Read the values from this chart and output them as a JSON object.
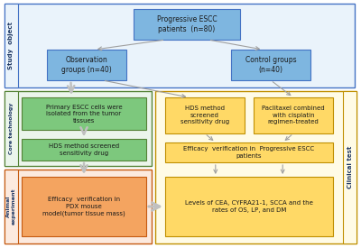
{
  "fig_width": 4.0,
  "fig_height": 2.75,
  "dpi": 100,
  "bg_color": "#ffffff",
  "box_blue": "#7EB6E0",
  "box_green": "#7DC87D",
  "box_yellow": "#FFD966",
  "box_salmon": "#F4A460",
  "border_blue": "#4472C4",
  "border_green": "#548235",
  "border_yellow": "#BF8F00",
  "border_salmon": "#C55A11",
  "arrow_color": "#A0A0A0",
  "study_object_label": "Study  object",
  "core_tech_label": "Core technology",
  "animal_label": "Animal\nexperiment",
  "clinical_label": "Clinical test",
  "box1_text": "Progressive ESCC\npatients  (n=80)",
  "box2_text": "Observation\ngroups (n=40)",
  "box3_text": "Control groups\n(n=40)",
  "box4_text": "Primary ESCC cells were\nisolated from the tumor\ntissues",
  "box5_text": "HDS method screened\nsensitivity drug",
  "box6_text": "HDS method\nscreened\nsensitivity drug",
  "box7_text": "Paclitaxel combined\nwith cisplatin\nregimen-treated",
  "box8_text": "Efficacy  verification in  Progressive ESCC\npatients",
  "box9_text": "Efficacy  verification in\nPDX mouse\nmodel(tumor tissue mass)",
  "box10_text": "Levels of CEA, CYFRA21-1, SCCA and the\nrates of OS, LP, and DM"
}
